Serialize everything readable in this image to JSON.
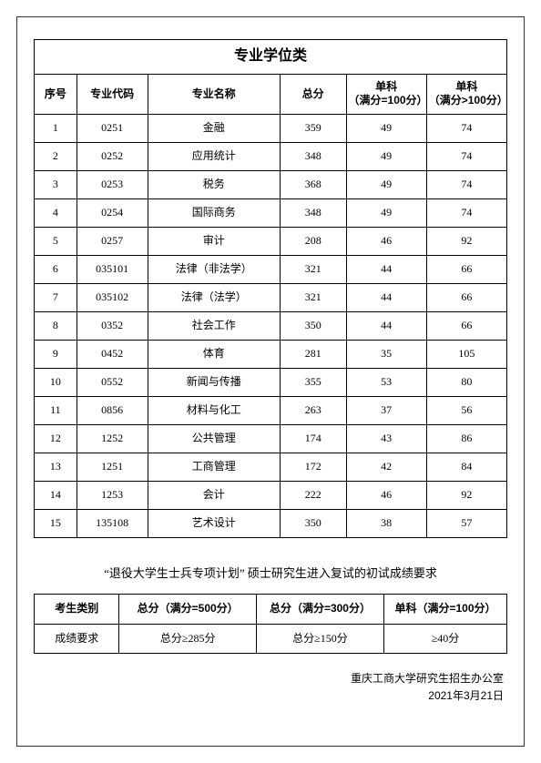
{
  "table1": {
    "title": "专业学位类",
    "columns": [
      "序号",
      "专业代码",
      "专业名称",
      "总分",
      "单科\n（满分=100分）",
      "单科\n（满分>100分）"
    ],
    "col_widths": [
      "9%",
      "15%",
      "28%",
      "14%",
      "17%",
      "17%"
    ],
    "rows": [
      [
        "1",
        "0251",
        "金融",
        "359",
        "49",
        "74"
      ],
      [
        "2",
        "0252",
        "应用统计",
        "348",
        "49",
        "74"
      ],
      [
        "3",
        "0253",
        "税务",
        "368",
        "49",
        "74"
      ],
      [
        "4",
        "0254",
        "国际商务",
        "348",
        "49",
        "74"
      ],
      [
        "5",
        "0257",
        "审计",
        "208",
        "46",
        "92"
      ],
      [
        "6",
        "035101",
        "法律（非法学）",
        "321",
        "44",
        "66"
      ],
      [
        "7",
        "035102",
        "法律（法学）",
        "321",
        "44",
        "66"
      ],
      [
        "8",
        "0352",
        "社会工作",
        "350",
        "44",
        "66"
      ],
      [
        "9",
        "0452",
        "体育",
        "281",
        "35",
        "105"
      ],
      [
        "10",
        "0552",
        "新闻与传播",
        "355",
        "53",
        "80"
      ],
      [
        "11",
        "0856",
        "材料与化工",
        "263",
        "37",
        "56"
      ],
      [
        "12",
        "1252",
        "公共管理",
        "174",
        "43",
        "86"
      ],
      [
        "13",
        "1251",
        "工商管理",
        "172",
        "42",
        "84"
      ],
      [
        "14",
        "1253",
        "会计",
        "222",
        "46",
        "92"
      ],
      [
        "15",
        "135108",
        "艺术设计",
        "350",
        "38",
        "57"
      ]
    ]
  },
  "subtitle": "“退役大学生士兵专项计划” 硕士研究生进入复试的初试成绩要求",
  "table2": {
    "columns": [
      "考生类别",
      "总分（满分=500分）",
      "总分（满分=300分）",
      "单科（满分=100分）"
    ],
    "col_widths": [
      "18%",
      "29%",
      "27%",
      "26%"
    ],
    "rows": [
      [
        "成绩要求",
        "总分≥285分",
        "总分≥150分",
        "≥40分"
      ]
    ]
  },
  "footer": {
    "org": "重庆工商大学研究生招生办公室",
    "date": "2021年3月21日"
  }
}
